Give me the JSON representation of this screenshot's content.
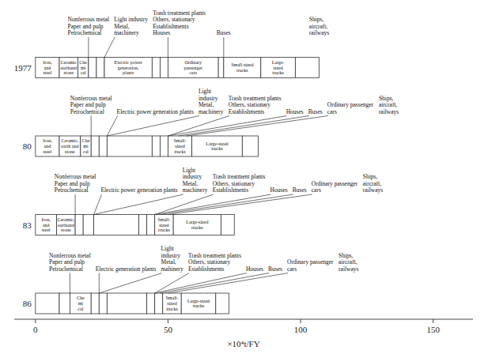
{
  "chart_data": {
    "type": "bar",
    "orientation": "horizontal",
    "stacked": true,
    "grid": false,
    "color": "#ffffff",
    "xlabel": "×10⁴t/FY",
    "categories": [
      "1977",
      "80",
      "83",
      "86"
    ],
    "xlim": [
      -8,
      165
    ],
    "xticks": [
      0,
      50,
      100,
      150
    ],
    "series": [
      {
        "values": [
          9,
          9,
          8,
          9
        ],
        "segment_labels": [
          "Iron,\nand\nsteel",
          "Iron,\nand\nsteel",
          "Iron,\nand\nsteel",
          null
        ]
      },
      {
        "values": [
          7,
          8,
          7,
          4
        ],
        "segment_labels": [
          "Ceramic\nearthand\nstone",
          "Ceramic,\nearth and\nstone",
          "Ceramic,\nearthand\nstone",
          null
        ]
      },
      {
        "values": [
          4,
          4,
          3,
          8
        ],
        "segment_labels": [
          "Che\nmi\ncal",
          "Che\nmi\ncal",
          null,
          "Che\nmi\ncal"
        ]
      },
      {
        "values": [
          3,
          3,
          4,
          3
        ]
      },
      {
        "values": [
          3,
          3,
          17,
          3
        ]
      },
      {
        "values": [
          18,
          17,
          3,
          15
        ],
        "segment_labels": [
          "Electric power\ngeneration,\nplants",
          null,
          null,
          null
        ]
      },
      {
        "values": [
          3,
          3,
          3,
          3
        ]
      },
      {
        "values": [
          3,
          3,
          7,
          3
        ],
        "segment_labels": [
          null,
          null,
          "Small-\nsized\ntrucks",
          null
        ]
      },
      {
        "values": [
          19,
          9,
          18,
          7
        ],
        "segment_labels": [
          "Ordinary\npassenger\ncars",
          "Small-\nsized\ntrucks",
          "Large-sized\ntrucks",
          "Small-\nsized\ntrucks"
        ]
      },
      {
        "values": [
          2,
          19,
          5,
          13
        ],
        "segment_labels": [
          null,
          "Large-sized\ntrucks",
          null,
          "Large-sized\ntrucks"
        ]
      },
      {
        "values": [
          14,
          6,
          null,
          5
        ],
        "segment_labels": [
          "Small-sized\ntrucks",
          null,
          null,
          null
        ]
      },
      {
        "values": [
          13,
          null,
          null,
          null
        ],
        "segment_labels": [
          "Large-\nsized\ntrucks",
          null,
          null,
          null
        ]
      },
      {
        "values": [
          9,
          null,
          null,
          null
        ]
      }
    ],
    "annotations": [
      {
        "category": "1977",
        "text": "Nonferrous metal\nPaper and pulp\nPetrochemical",
        "x": 20
      },
      {
        "category": "1977",
        "text": "Light industry\nMetal,\nmachinery",
        "x": 26
      },
      {
        "category": "1977",
        "text": "Trash treatment plants\nOthers, stationary\nEstablishments\nHouses",
        "x": 50
      },
      {
        "category": "1977",
        "text": "Buses",
        "x": 71
      },
      {
        "category": "1977",
        "text": "Ships,\naircraft,\nrailways"
      },
      {
        "category": "80",
        "text": "Electric power generation plants",
        "x": 27
      },
      {
        "category": "80",
        "text": "Nonferrous metal\nPaper and pulp\nPetrochemical",
        "x": 21
      },
      {
        "category": "80",
        "text": "Light\nindustry\nMetal,\nmachinery",
        "x": 27
      },
      {
        "category": "80",
        "text": "Trash treatment plants\nOthers, stationary\nEstablishments",
        "x": 50
      },
      {
        "category": "80",
        "text": "Houses",
        "x": 50
      },
      {
        "category": "80",
        "text": "Ordinary passenger\ncars",
        "x": 57
      },
      {
        "category": "80",
        "text": "Buses",
        "x": 54
      },
      {
        "category": "80",
        "text": "Ships,\naircraft,\nrailways"
      },
      {
        "category": "83",
        "text": "Electric power generation plants",
        "x": 22
      },
      {
        "category": "83",
        "text": "Nonferrous metal\nPaper and pulp\nPetrochemical",
        "x": 15
      },
      {
        "category": "83",
        "text": "Light\nindustry\nMetal,\nmachinery",
        "x": 22
      },
      {
        "category": "83",
        "text": "Trash treatment plants\nOthers, stationary\nEstablishments",
        "x": 45
      },
      {
        "category": "83",
        "text": "Houses",
        "x": 45
      },
      {
        "category": "83",
        "text": "Ordinary passenger\ncars",
        "x": 50
      },
      {
        "category": "83",
        "text": "Buses",
        "x": 47
      },
      {
        "category": "83",
        "text": "Ships,\naircraft,\nrailways"
      },
      {
        "category": "86",
        "text": "Electric generation plants",
        "x": 24
      },
      {
        "category": "86",
        "text": "Nonferrous metal\nPaper and pulp\nPetrochemical",
        "x": 13
      },
      {
        "category": "86",
        "text": "Light\nindustry\nMetal,\nmahinery",
        "x": 24
      },
      {
        "category": "86",
        "text": "Trash treatment plants\nOthers, stationary\nEstablishments",
        "x": 45
      },
      {
        "category": "86",
        "text": "Houses",
        "x": 45
      },
      {
        "category": "86",
        "text": "Ordinary passenger\ncars",
        "x": 50
      },
      {
        "category": "86",
        "text": "Buses",
        "x": 47
      },
      {
        "category": "86",
        "text": "Ships,\naircraft,\nrailways"
      }
    ]
  }
}
